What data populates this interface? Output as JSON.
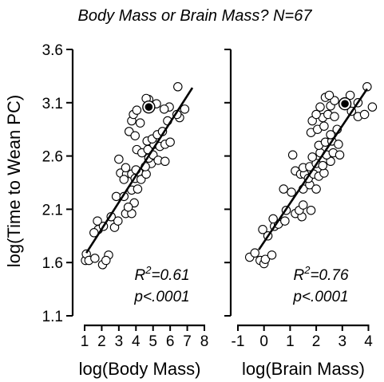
{
  "chart_data": {
    "title": "Body Mass or Brain Mass? N=67",
    "ylabel": "log(Time to Wean PC)",
    "ylim": [
      1.1,
      3.6
    ],
    "yticks": [
      "1.1",
      "1.6",
      "2.1",
      "2.6",
      "3.1",
      "3.6"
    ],
    "panels": [
      {
        "type": "scatter",
        "xlabel": "log(Body Mass)",
        "xlim": [
          0.6,
          8.0
        ],
        "xticks": [
          "1",
          "2",
          "3",
          "4",
          "5",
          "6",
          "7",
          "8"
        ],
        "r2_label": "R",
        "r2_exp": "2",
        "r2_value": "=0.61",
        "p_label": "p<.0001",
        "fit_line": {
          "x": [
            1.1,
            7.3
          ],
          "y": [
            1.69,
            3.24
          ]
        },
        "highlight": {
          "x": 4.75,
          "y": 3.06
        },
        "points": [
          [
            1.05,
            1.62
          ],
          [
            1.1,
            1.68
          ],
          [
            1.25,
            1.62
          ],
          [
            1.6,
            1.64
          ],
          [
            2.05,
            1.58
          ],
          [
            2.4,
            1.67
          ],
          [
            2.25,
            1.62
          ],
          [
            1.8,
            1.91
          ],
          [
            1.55,
            1.88
          ],
          [
            1.75,
            1.99
          ],
          [
            2.1,
            1.94
          ],
          [
            2.75,
            1.93
          ],
          [
            2.95,
            1.99
          ],
          [
            2.55,
            2.03
          ],
          [
            3.4,
            2.06
          ],
          [
            3.75,
            2.06
          ],
          [
            3.9,
            2.16
          ],
          [
            3.55,
            2.12
          ],
          [
            2.85,
            2.22
          ],
          [
            3.3,
            2.22
          ],
          [
            3.75,
            2.28
          ],
          [
            4.1,
            2.29
          ],
          [
            3.1,
            2.44
          ],
          [
            3.45,
            2.43
          ],
          [
            3.75,
            2.43
          ],
          [
            3.3,
            2.38
          ],
          [
            3.95,
            2.39
          ],
          [
            4.15,
            2.45
          ],
          [
            4.3,
            2.38
          ],
          [
            3.4,
            2.49
          ],
          [
            4.0,
            2.47
          ],
          [
            4.6,
            2.43
          ],
          [
            4.9,
            2.53
          ],
          [
            4.75,
            2.58
          ],
          [
            4.55,
            2.5
          ],
          [
            3.0,
            2.57
          ],
          [
            4.05,
            2.66
          ],
          [
            4.35,
            2.63
          ],
          [
            4.7,
            2.66
          ],
          [
            5.0,
            2.61
          ],
          [
            5.3,
            2.56
          ],
          [
            5.7,
            2.55
          ],
          [
            5.05,
            2.71
          ],
          [
            5.4,
            2.69
          ],
          [
            5.7,
            2.71
          ],
          [
            6.0,
            2.73
          ],
          [
            4.65,
            2.74
          ],
          [
            4.95,
            2.76
          ],
          [
            5.25,
            2.8
          ],
          [
            5.55,
            2.83
          ],
          [
            3.6,
            2.83
          ],
          [
            3.95,
            2.79
          ],
          [
            3.75,
            2.93
          ],
          [
            4.25,
            2.91
          ],
          [
            3.85,
            2.99
          ],
          [
            5.85,
            2.93
          ],
          [
            6.55,
            2.96
          ],
          [
            6.4,
            2.99
          ],
          [
            4.05,
            3.03
          ],
          [
            5.95,
            3.06
          ],
          [
            4.75,
            3.13
          ],
          [
            5.2,
            3.09
          ],
          [
            4.6,
            3.14
          ],
          [
            6.85,
            3.04
          ],
          [
            6.45,
            3.25
          ],
          [
            5.65,
            3.04
          ]
        ]
      },
      {
        "type": "scatter",
        "xlabel": "log(Brain Mass)",
        "xlim": [
          -1.0,
          4.3
        ],
        "xticks": [
          "-1",
          "0",
          "1",
          "2",
          "3",
          "4"
        ],
        "r2_label": "R",
        "r2_exp": "2",
        "r2_value": "=0.76",
        "p_label": "p<.0001",
        "fit_line": {
          "x": [
            -0.2,
            3.95
          ],
          "y": [
            1.72,
            3.23
          ]
        },
        "highlight": {
          "x": 3.1,
          "y": 3.09
        },
        "points": [
          [
            -0.55,
            1.65
          ],
          [
            -0.35,
            1.69
          ],
          [
            -0.15,
            1.62
          ],
          [
            0.0,
            1.59
          ],
          [
            0.05,
            1.63
          ],
          [
            0.3,
            1.67
          ],
          [
            -0.05,
            1.91
          ],
          [
            0.15,
            1.85
          ],
          [
            0.4,
            1.94
          ],
          [
            0.55,
            1.96
          ],
          [
            0.35,
            2.01
          ],
          [
            0.8,
            1.99
          ],
          [
            0.85,
            2.09
          ],
          [
            1.2,
            2.06
          ],
          [
            1.45,
            2.03
          ],
          [
            1.35,
            2.09
          ],
          [
            1.5,
            2.14
          ],
          [
            1.8,
            2.09
          ],
          [
            0.75,
            2.29
          ],
          [
            1.05,
            2.26
          ],
          [
            1.5,
            2.29
          ],
          [
            1.75,
            2.33
          ],
          [
            2.0,
            2.29
          ],
          [
            1.2,
            2.46
          ],
          [
            1.4,
            2.43
          ],
          [
            1.55,
            2.43
          ],
          [
            1.7,
            2.39
          ],
          [
            1.9,
            2.43
          ],
          [
            2.1,
            2.41
          ],
          [
            2.3,
            2.44
          ],
          [
            1.5,
            2.49
          ],
          [
            1.75,
            2.5
          ],
          [
            2.0,
            2.53
          ],
          [
            2.25,
            2.51
          ],
          [
            2.55,
            2.55
          ],
          [
            1.1,
            2.61
          ],
          [
            1.85,
            2.59
          ],
          [
            2.15,
            2.63
          ],
          [
            2.4,
            2.61
          ],
          [
            2.65,
            2.63
          ],
          [
            2.9,
            2.61
          ],
          [
            2.1,
            2.7
          ],
          [
            2.35,
            2.73
          ],
          [
            2.6,
            2.74
          ],
          [
            2.85,
            2.71
          ],
          [
            2.55,
            2.8
          ],
          [
            2.8,
            2.85
          ],
          [
            1.8,
            2.82
          ],
          [
            2.05,
            2.85
          ],
          [
            2.3,
            2.88
          ],
          [
            1.85,
            2.93
          ],
          [
            2.25,
            2.96
          ],
          [
            2.0,
            2.99
          ],
          [
            2.45,
            2.99
          ],
          [
            2.7,
            2.97
          ],
          [
            3.6,
            2.97
          ],
          [
            3.85,
            2.99
          ],
          [
            3.35,
            3.02
          ],
          [
            2.15,
            3.06
          ],
          [
            2.55,
            3.07
          ],
          [
            2.35,
            3.15
          ],
          [
            2.7,
            3.12
          ],
          [
            3.3,
            3.17
          ],
          [
            2.5,
            3.17
          ],
          [
            3.95,
            3.25
          ],
          [
            4.15,
            3.06
          ],
          [
            3.6,
            3.1
          ]
        ]
      }
    ]
  }
}
